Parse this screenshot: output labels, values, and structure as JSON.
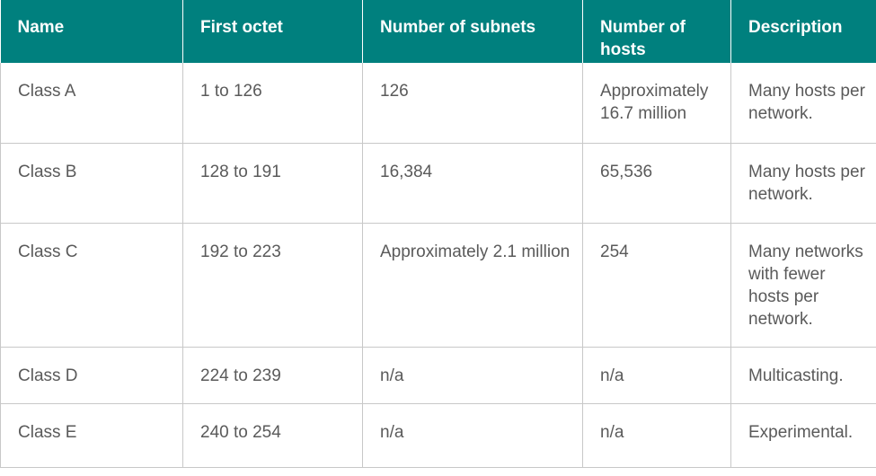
{
  "headers": [
    "Name",
    "First octet",
    "Number of subnets",
    "Number of hosts",
    "Description"
  ],
  "rows": [
    [
      "Class A",
      "1 to 126",
      "126",
      "Approximately 16.7 million",
      "Many hosts per network."
    ],
    [
      "Class B",
      "128 to 191",
      "16,384",
      "65,536",
      "Many hosts per network."
    ],
    [
      "Class C",
      "192 to 223",
      "Approximately 2.1 million",
      "254",
      "Many networks with fewer hosts per network."
    ],
    [
      "Class D",
      "224 to 239",
      "n/a",
      "n/a",
      "Multicasting."
    ],
    [
      "Class E",
      "240 to 254",
      "n/a",
      "n/a",
      "Experimental."
    ]
  ],
  "colors": {
    "header_bg": "#00807e",
    "header_text": "#ffffff",
    "cell_text": "#5a5a5a",
    "border": "#c8c8c8"
  }
}
